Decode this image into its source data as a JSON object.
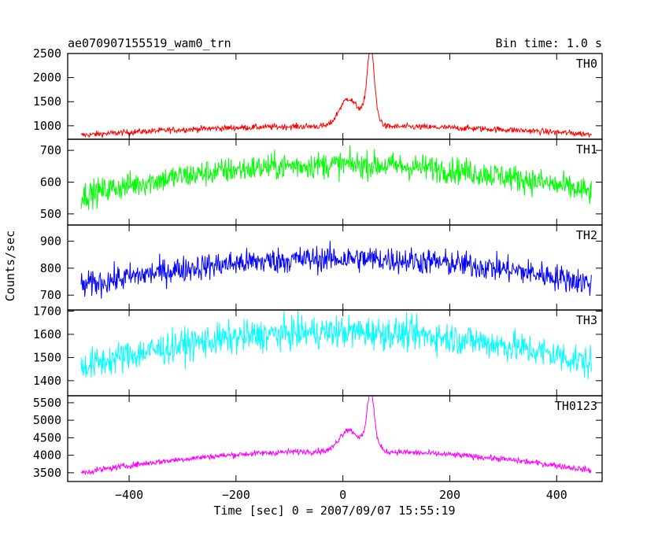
{
  "chart_data": {
    "type": "line",
    "title": "ae070907155519_wam0_trn",
    "bin_time_label": "Bin time: 1.0 s",
    "xlabel": "Time [sec] 0 = 2007/09/07 15:55:19",
    "ylabel": "Counts/sec",
    "xlim": [
      -515,
      485
    ],
    "x_ticks": [
      -400,
      -200,
      0,
      200,
      400
    ],
    "x_tick_labels": [
      "−400",
      "−200",
      "0",
      "200",
      "400"
    ],
    "x_range_data": [
      -490,
      465
    ],
    "grid": false,
    "panels": [
      {
        "name": "TH0",
        "color": "#ff0000",
        "ylim": [
          720,
          2500
        ],
        "y_ticks": [
          1000,
          1500,
          2000,
          2500
        ],
        "model": {
          "base_at_zero": 990,
          "base_at_edge": 780,
          "noise": 45,
          "peaks": [
            {
              "t": 5,
              "amp": 490,
              "w": 20
            },
            {
              "t": 52,
              "amp": 1400,
              "w": 9
            }
          ],
          "shoulder": {
            "from": 0,
            "to": 80,
            "amp": 300
          }
        }
      },
      {
        "name": "TH1",
        "color": "#00ff00",
        "ylim": [
          465,
          735
        ],
        "y_ticks": [
          500,
          600,
          700
        ],
        "model": {
          "base_at_zero": 655,
          "base_at_edge": 545,
          "noise": 30,
          "peaks": []
        }
      },
      {
        "name": "TH2",
        "color": "#0000ff",
        "ylim": [
          645,
          960
        ],
        "y_ticks": [
          700,
          800,
          900
        ],
        "model": {
          "base_at_zero": 835,
          "base_at_edge": 720,
          "noise": 35,
          "peaks": []
        }
      },
      {
        "name": "TH3",
        "color": "#00ffff",
        "ylim": [
          1335,
          1705
        ],
        "y_ticks": [
          1400,
          1500,
          1600,
          1700
        ],
        "model": {
          "base_at_zero": 1610,
          "base_at_edge": 1440,
          "noise": 50,
          "peaks": []
        }
      },
      {
        "name": "TH0123",
        "color": "#ff00ff",
        "ylim": [
          3250,
          5700
        ],
        "y_ticks": [
          3500,
          4000,
          4500,
          5000,
          5500
        ],
        "model": {
          "base_at_zero": 4120,
          "base_at_edge": 3420,
          "noise": 60,
          "peaks": [
            {
              "t": 5,
              "amp": 520,
              "w": 20
            },
            {
              "t": 52,
              "amp": 1450,
              "w": 9
            }
          ],
          "shoulder": {
            "from": 0,
            "to": 80,
            "amp": 330
          }
        }
      }
    ]
  }
}
